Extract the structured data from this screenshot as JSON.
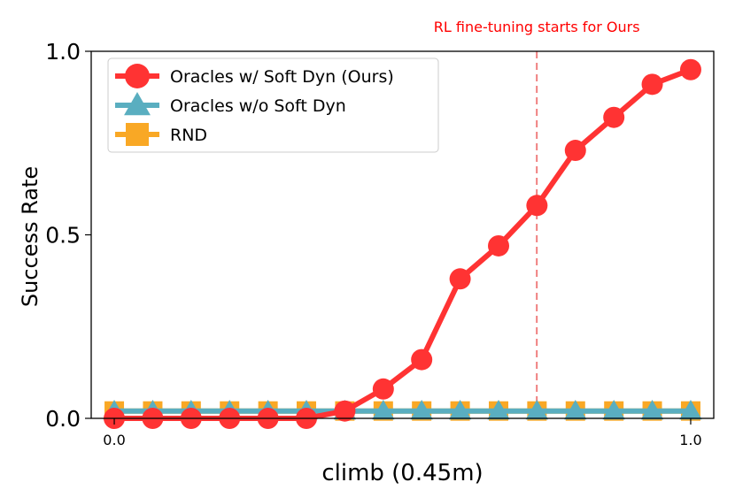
{
  "chart_data": {
    "type": "line",
    "title": "",
    "xlabel": "climb (0.45m)",
    "ylabel": "Success Rate",
    "xlim": [
      -0.04,
      1.04
    ],
    "ylim": [
      0.0,
      1.0
    ],
    "x_ticks": [
      0.0,
      1.0
    ],
    "x_tick_labels": [
      "0.0",
      "1.0"
    ],
    "y_ticks": [
      0.0,
      0.5,
      1.0
    ],
    "y_tick_labels": [
      "0.0",
      "0.5",
      "1.0"
    ],
    "grid": false,
    "legend_position": "top-left",
    "annotation": {
      "text": "RL fine-tuning starts for Ours",
      "x": 0.733,
      "color": "#ff0000",
      "line_color": "#f08080",
      "line_style": "dashed"
    },
    "x": [
      0.0,
      0.0667,
      0.1333,
      0.2,
      0.2667,
      0.3333,
      0.4,
      0.4667,
      0.5333,
      0.6,
      0.6667,
      0.7333,
      0.8,
      0.8667,
      0.9333,
      1.0
    ],
    "series": [
      {
        "name": "Oracles w/ Soft Dyn (Ours)",
        "color": "#ff3333",
        "marker": "circle",
        "values": [
          0.0,
          0.0,
          0.0,
          0.0,
          0.0,
          0.0,
          0.02,
          0.08,
          0.16,
          0.38,
          0.47,
          0.58,
          0.73,
          0.82,
          0.91,
          0.95
        ]
      },
      {
        "name": "Oracles w/o Soft Dyn",
        "color": "#5aaec0",
        "marker": "triangle",
        "values": [
          0.02,
          0.02,
          0.02,
          0.02,
          0.02,
          0.02,
          0.02,
          0.02,
          0.02,
          0.02,
          0.02,
          0.02,
          0.02,
          0.02,
          0.02,
          0.02
        ]
      },
      {
        "name": "RND",
        "color": "#f9a825",
        "marker": "square",
        "values": [
          0.02,
          0.02,
          0.02,
          0.02,
          0.02,
          0.02,
          0.02,
          0.02,
          0.02,
          0.02,
          0.02,
          0.02,
          0.02,
          0.02,
          0.02,
          0.02
        ]
      }
    ]
  }
}
